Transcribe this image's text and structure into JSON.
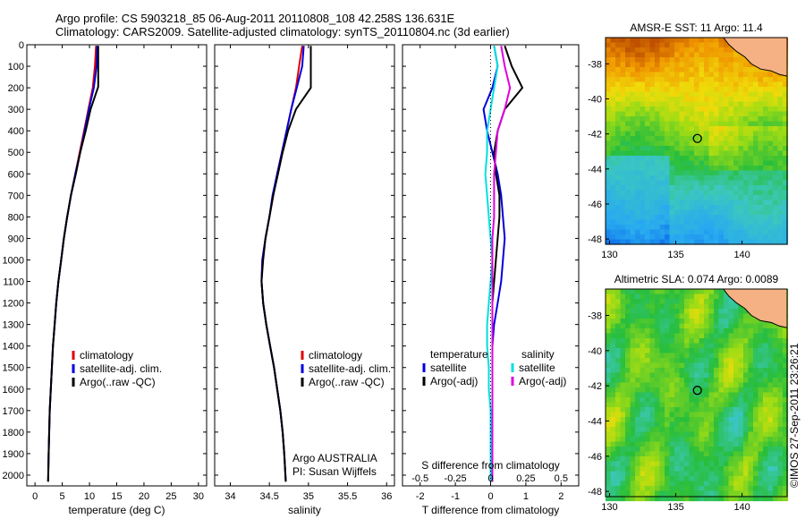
{
  "title_line1": "Argo profile: CS 5903218_85 06-Aug-2011 20110808_108 42.258S 136.631E",
  "title_line2": "Climatology: CARS2009. Satellite-adjusted climatology: synTS_20110804.nc (3d earlier)",
  "watermark": "©IMOS 27-Sep-2011 23:26:21",
  "colors": {
    "climatology": "#e00000",
    "satellite": "#0000e0",
    "argo": "#000000",
    "sal_sat": "#00e0e0",
    "sal_argo": "#e000e0",
    "land": "#f5b183"
  },
  "chart_data": [
    {
      "type": "line",
      "id": "temperature",
      "xlabel": "temperature (deg C)",
      "ylabel": "",
      "xlim": [
        -1.5,
        31.5
      ],
      "ylim": [
        2050,
        0
      ],
      "xticks": [
        0,
        5,
        10,
        15,
        20,
        25,
        30
      ],
      "yticks": [
        0,
        100,
        200,
        300,
        400,
        500,
        600,
        700,
        800,
        900,
        1000,
        1100,
        1200,
        1300,
        1400,
        1500,
        1600,
        1700,
        1800,
        1900,
        2000
      ],
      "legend": {
        "placement": "lower-center",
        "entries": [
          "climatology",
          "satellite-adj. clim.",
          "Argo(..raw -QC)"
        ]
      },
      "series": [
        {
          "name": "climatology",
          "color": "#e00000",
          "x": [
            11.2,
            11.0,
            10.6,
            9.8,
            9.0,
            8.2,
            7.4,
            6.6,
            5.9,
            5.3,
            4.8,
            4.3,
            3.9,
            3.6,
            3.3,
            3.1,
            2.9,
            2.7,
            2.6,
            2.5,
            2.4
          ],
          "y": [
            5,
            100,
            200,
            300,
            400,
            500,
            600,
            700,
            800,
            900,
            1000,
            1100,
            1200,
            1300,
            1400,
            1500,
            1600,
            1700,
            1800,
            1900,
            2030
          ]
        },
        {
          "name": "satellite-adj. clim.",
          "color": "#0000e0",
          "x": [
            11.4,
            11.3,
            10.8,
            9.9,
            9.1,
            8.3,
            7.4,
            6.6,
            5.9,
            5.3,
            4.8,
            4.3,
            3.9,
            3.6,
            3.3,
            3.1,
            2.9,
            2.7,
            2.6,
            2.5,
            2.4
          ],
          "y": [
            5,
            100,
            200,
            300,
            400,
            500,
            600,
            700,
            800,
            900,
            1000,
            1100,
            1200,
            1300,
            1400,
            1500,
            1600,
            1700,
            1800,
            1900,
            2030
          ]
        },
        {
          "name": "Argo(..raw -QC)",
          "color": "#000000",
          "x": [
            11.6,
            11.6,
            11.6,
            10.2,
            9.3,
            8.3,
            7.5,
            6.6,
            5.9,
            5.3,
            4.8,
            4.3,
            3.9,
            3.6,
            3.3,
            3.1,
            2.9,
            2.7,
            2.6,
            2.5,
            2.4
          ],
          "y": [
            5,
            100,
            195,
            300,
            400,
            500,
            600,
            700,
            800,
            900,
            1000,
            1100,
            1200,
            1300,
            1400,
            1500,
            1600,
            1700,
            1800,
            1900,
            2030
          ]
        }
      ]
    },
    {
      "type": "line",
      "id": "salinity",
      "xlabel": "salinity",
      "ylabel": "",
      "xlim": [
        33.8,
        36.1
      ],
      "ylim": [
        2050,
        0
      ],
      "xticks": [
        34,
        34.5,
        35,
        35.5,
        36
      ],
      "legend": {
        "placement": "lower-right",
        "entries": [
          "climatology",
          "satellite-adj. clim.",
          "Argo(..raw -QC)"
        ]
      },
      "annotation": [
        "Argo AUSTRALIA",
        "PI: Susan Wijffels"
      ],
      "series": [
        {
          "name": "climatology",
          "color": "#e00000",
          "x": [
            34.92,
            34.88,
            34.84,
            34.78,
            34.72,
            34.66,
            34.6,
            34.55,
            34.5,
            34.45,
            34.41,
            34.4,
            34.42,
            34.46,
            34.51,
            34.56,
            34.6,
            34.64,
            34.67,
            34.69,
            34.71
          ],
          "y": [
            5,
            100,
            200,
            300,
            400,
            500,
            600,
            700,
            800,
            900,
            1000,
            1100,
            1200,
            1300,
            1400,
            1500,
            1600,
            1700,
            1800,
            1900,
            2030
          ]
        },
        {
          "name": "satellite-adj. clim.",
          "color": "#0000e0",
          "x": [
            34.94,
            34.92,
            34.85,
            34.78,
            34.72,
            34.66,
            34.6,
            34.54,
            34.5,
            34.45,
            34.41,
            34.4,
            34.42,
            34.46,
            34.51,
            34.56,
            34.6,
            34.64,
            34.67,
            34.69,
            34.71
          ],
          "y": [
            5,
            100,
            200,
            300,
            400,
            500,
            600,
            700,
            800,
            900,
            1000,
            1100,
            1200,
            1300,
            1400,
            1500,
            1600,
            1700,
            1800,
            1900,
            2030
          ]
        },
        {
          "name": "Argo(..raw -QC)",
          "color": "#000000",
          "x": [
            35.03,
            35.03,
            35.03,
            34.84,
            34.74,
            34.67,
            34.61,
            34.55,
            34.5,
            34.45,
            34.42,
            34.4,
            34.42,
            34.46,
            34.51,
            34.56,
            34.6,
            34.64,
            34.67,
            34.69,
            34.71
          ],
          "y": [
            5,
            100,
            200,
            300,
            400,
            500,
            600,
            700,
            800,
            900,
            1000,
            1100,
            1200,
            1300,
            1400,
            1500,
            1600,
            1700,
            1800,
            1900,
            2030
          ]
        }
      ]
    },
    {
      "type": "line",
      "id": "differences",
      "xlabel": "T difference from climatology",
      "x2label": "S difference from climatology",
      "xlim": [
        -2.5,
        2.5
      ],
      "ylim": [
        2050,
        0
      ],
      "xticks": [
        -2,
        -1,
        0,
        1,
        2
      ],
      "x2ticks_values": [
        -0.5,
        -0.25,
        0,
        0.25,
        0.5
      ],
      "x2ticks_labels": [
        "-0.5",
        "-0.25",
        "0",
        "0.25",
        "0.5"
      ],
      "legend": {
        "placement": "lower-center",
        "headers": [
          "temperature",
          "salinity"
        ],
        "entries": [
          "satellite",
          "Argo(-adj)",
          "satellite",
          "Argo(-adj)"
        ]
      },
      "series": [
        {
          "name": "temperature satellite",
          "color": "#0000e0",
          "x": [
            0.1,
            0.2,
            0.05,
            -0.2,
            -0.1,
            0.05,
            0.2,
            0.3,
            0.35,
            0.4,
            0.35,
            0.3,
            0.2,
            0.1,
            0.05,
            0.05,
            0.05,
            0.05,
            0.05,
            0.05,
            0.05
          ],
          "y": [
            5,
            100,
            200,
            300,
            400,
            500,
            600,
            700,
            800,
            900,
            1000,
            1100,
            1200,
            1300,
            1400,
            1500,
            1600,
            1700,
            1800,
            1900,
            2030
          ]
        },
        {
          "name": "temperature Argo(-adj)",
          "color": "#000000",
          "x": [
            0.4,
            0.6,
            0.9,
            0.4,
            0.2,
            0.1,
            0.15,
            0.25,
            0.25,
            0.2,
            0.15,
            0.1,
            0.05,
            0.05,
            0.05,
            0.05,
            0.05,
            0.05,
            0.05,
            0.05,
            0.05
          ],
          "y": [
            5,
            100,
            200,
            300,
            400,
            500,
            600,
            700,
            800,
            900,
            1000,
            1100,
            1200,
            1300,
            1400,
            1500,
            1600,
            1700,
            1800,
            1900,
            2030
          ]
        },
        {
          "name": "salinity satellite",
          "color": "#00e0e0",
          "x": [
            0.1,
            0.2,
            0.1,
            0.0,
            -0.1,
            -0.1,
            -0.15,
            -0.1,
            -0.05,
            0.0,
            0.05,
            0.0,
            -0.05,
            -0.1,
            -0.1,
            -0.05,
            -0.05,
            0.0,
            0.0,
            0.0,
            0.0
          ],
          "y": [
            5,
            100,
            200,
            300,
            400,
            500,
            600,
            700,
            800,
            900,
            1000,
            1100,
            1200,
            1300,
            1400,
            1500,
            1600,
            1700,
            1800,
            1900,
            2030
          ]
        },
        {
          "name": "salinity Argo(-adj)",
          "color": "#e000e0",
          "x": [
            0.3,
            0.4,
            0.55,
            0.4,
            0.2,
            0.15,
            0.1,
            0.1,
            0.1,
            0.05,
            0.05,
            0.05,
            0.05,
            0.05,
            0.05,
            0.05,
            0.05,
            0.05,
            0.05,
            0.05,
            0.05
          ],
          "y": [
            5,
            100,
            200,
            300,
            400,
            500,
            600,
            700,
            800,
            900,
            1000,
            1100,
            1200,
            1300,
            1400,
            1500,
            1600,
            1700,
            1800,
            1900,
            2030
          ]
        }
      ]
    },
    {
      "type": "heatmap",
      "id": "sst",
      "title": "AMSR-E SST: 11 Argo: 11.4",
      "xlim": [
        129.7,
        143.4
      ],
      "ylim": [
        -48.3,
        -36.5
      ],
      "xticks": [
        130,
        135,
        140
      ],
      "yticks": [
        -38,
        -40,
        -42,
        -44,
        -46,
        -48
      ],
      "marker": {
        "lon": 136.631,
        "lat": -42.258
      }
    },
    {
      "type": "heatmap",
      "id": "sla",
      "title": "Altimetric SLA: 0.074 Argo: 0.0089",
      "xlim": [
        129.7,
        143.4
      ],
      "ylim": [
        -48.3,
        -36.5
      ],
      "xticks": [
        130,
        135,
        140
      ],
      "yticks": [
        -38,
        -40,
        -42,
        -44,
        -46,
        -48
      ],
      "marker": {
        "lon": 136.631,
        "lat": -42.258
      }
    }
  ]
}
